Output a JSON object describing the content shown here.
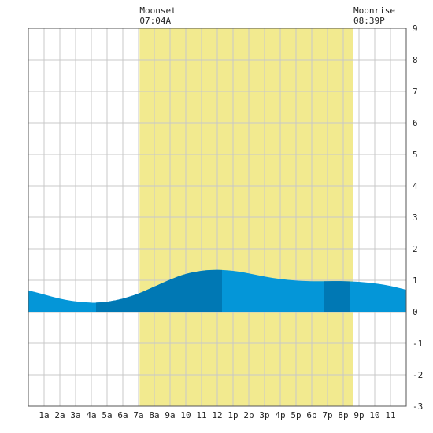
{
  "chart_data": {
    "type": "area",
    "title": "",
    "xlabel": "",
    "ylabel": "",
    "x_categories": [
      "1a",
      "2a",
      "3a",
      "4a",
      "5a",
      "6a",
      "7a",
      "8a",
      "9a",
      "10",
      "11",
      "12",
      "1p",
      "2p",
      "3p",
      "4p",
      "5p",
      "6p",
      "7p",
      "8p",
      "9p",
      "10",
      "11"
    ],
    "xlim": [
      0,
      24
    ],
    "ylim": [
      -3,
      9
    ],
    "yticks": [
      -3,
      -2,
      -1,
      0,
      1,
      2,
      3,
      4,
      5,
      6,
      7,
      8,
      9
    ],
    "grid": true,
    "moon_window": {
      "start_hour": 7.067,
      "end_hour": 20.65,
      "color": "#f2ea8f"
    },
    "annotations": [
      {
        "label": "Moonset",
        "time": "07:04A",
        "hour": 7.067
      },
      {
        "label": "Moonrise",
        "time": "08:39P",
        "hour": 20.65
      }
    ],
    "series": [
      {
        "x": [
          0,
          1,
          2,
          3,
          4,
          4.3,
          5,
          6,
          7,
          8,
          9,
          10,
          11,
          12,
          13,
          14,
          15,
          16,
          17,
          18,
          19,
          20,
          21,
          22,
          23,
          24
        ],
        "y": [
          0.68,
          0.55,
          0.42,
          0.33,
          0.29,
          0.29,
          0.32,
          0.42,
          0.58,
          0.8,
          1.02,
          1.2,
          1.3,
          1.33,
          1.3,
          1.22,
          1.12,
          1.04,
          0.99,
          0.97,
          0.97,
          0.97,
          0.95,
          0.9,
          0.82,
          0.7
        ]
      }
    ],
    "highlight_ranges": [
      {
        "start": 4.3,
        "end": 12.3
      },
      {
        "start": 18.75,
        "end": 20.4
      }
    ],
    "colors": {
      "fill": "#0496d8",
      "highlight": "#0078b4",
      "grid": "#c8c8c8",
      "frame": "#555555"
    }
  }
}
